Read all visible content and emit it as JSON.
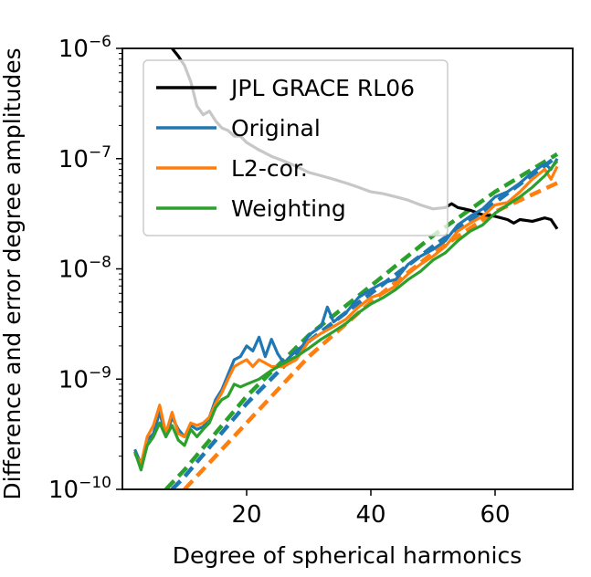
{
  "chart_data": {
    "type": "line",
    "xlabel": "Degree of spherical harmonics",
    "ylabel": "Difference and error degree amplitudes",
    "xlim": [
      0,
      72.5
    ],
    "ylim": [
      1e-10,
      1e-06
    ],
    "yscale": "log",
    "grid": false,
    "legend_position": "top-left",
    "x_ticks": [
      {
        "value": 20,
        "label": "20"
      },
      {
        "value": 40,
        "label": "40"
      },
      {
        "value": 60,
        "label": "60"
      }
    ],
    "y_ticks": [
      {
        "value": 1e-10,
        "base": "10",
        "exp": "−10"
      },
      {
        "value": 1e-09,
        "base": "10",
        "exp": "−9"
      },
      {
        "value": 1e-08,
        "base": "10",
        "exp": "−8"
      },
      {
        "value": 1e-07,
        "base": "10",
        "exp": "−7"
      },
      {
        "value": 1e-06,
        "base": "10",
        "exp": "−6"
      }
    ],
    "series": [
      {
        "name": "JPL GRACE RL06",
        "color": "#000000",
        "style": "solid",
        "points": [
          [
            8,
            1e-06
          ],
          [
            9,
            8.5e-07
          ],
          [
            10,
            7e-07
          ],
          [
            11,
            5e-07
          ],
          [
            12,
            3e-07
          ],
          [
            13,
            2.5e-07
          ],
          [
            14,
            2.7e-07
          ],
          [
            15,
            2.2e-07
          ],
          [
            16,
            1.9e-07
          ],
          [
            17,
            1.8e-07
          ],
          [
            18,
            1.6e-07
          ],
          [
            19,
            1.6e-07
          ],
          [
            20,
            1.4e-07
          ],
          [
            22,
            1.2e-07
          ],
          [
            24,
            1.05e-07
          ],
          [
            26,
            9.5e-08
          ],
          [
            28,
            8.5e-08
          ],
          [
            30,
            7.5e-08
          ],
          [
            32,
            7e-08
          ],
          [
            34,
            6.5e-08
          ],
          [
            36,
            6e-08
          ],
          [
            38,
            5.5e-08
          ],
          [
            40,
            5e-08
          ],
          [
            42,
            4.8e-08
          ],
          [
            44,
            4.5e-08
          ],
          [
            46,
            4.2e-08
          ],
          [
            48,
            3.8e-08
          ],
          [
            50,
            3.5e-08
          ],
          [
            52,
            3.6e-08
          ],
          [
            53,
            3.9e-08
          ],
          [
            54,
            3.6e-08
          ],
          [
            56,
            3.4e-08
          ],
          [
            58,
            3.1e-08
          ],
          [
            60,
            3e-08
          ],
          [
            62,
            2.8e-08
          ],
          [
            63,
            2.6e-08
          ],
          [
            64,
            2.8e-08
          ],
          [
            66,
            2.7e-08
          ],
          [
            68,
            2.9e-08
          ],
          [
            69,
            2.8e-08
          ],
          [
            70,
            2.3e-08
          ]
        ]
      },
      {
        "name": "Original",
        "color": "#1f77b4",
        "style": "solid",
        "points": [
          [
            2,
            2.3e-10
          ],
          [
            3,
            1.7e-10
          ],
          [
            4,
            2.8e-10
          ],
          [
            5,
            3.2e-10
          ],
          [
            6,
            5e-10
          ],
          [
            7,
            3e-10
          ],
          [
            8,
            4.5e-10
          ],
          [
            9,
            3.5e-10
          ],
          [
            10,
            3e-10
          ],
          [
            11,
            3.8e-10
          ],
          [
            12,
            3.5e-10
          ],
          [
            13,
            3.7e-10
          ],
          [
            14,
            4.5e-10
          ],
          [
            15,
            6.5e-10
          ],
          [
            16,
            8e-10
          ],
          [
            17,
            1.1e-09
          ],
          [
            18,
            1.5e-09
          ],
          [
            19,
            1.6e-09
          ],
          [
            20,
            2e-09
          ],
          [
            21,
            1.8e-09
          ],
          [
            22,
            2.4e-09
          ],
          [
            23,
            1.6e-09
          ],
          [
            24,
            2.3e-09
          ],
          [
            25,
            1.7e-09
          ],
          [
            26,
            1.4e-09
          ],
          [
            27,
            1.6e-09
          ],
          [
            28,
            1.8e-09
          ],
          [
            29,
            2e-09
          ],
          [
            30,
            2.5e-09
          ],
          [
            32,
            3e-09
          ],
          [
            33,
            4.5e-09
          ],
          [
            34,
            3.3e-09
          ],
          [
            36,
            4e-09
          ],
          [
            38,
            5.5e-09
          ],
          [
            40,
            6.5e-09
          ],
          [
            42,
            7.5e-09
          ],
          [
            44,
            8e-09
          ],
          [
            46,
            1.1e-08
          ],
          [
            48,
            1.3e-08
          ],
          [
            50,
            1.5e-08
          ],
          [
            52,
            1.8e-08
          ],
          [
            54,
            2.5e-08
          ],
          [
            56,
            3e-08
          ],
          [
            58,
            3.5e-08
          ],
          [
            60,
            4.5e-08
          ],
          [
            62,
            5e-08
          ],
          [
            64,
            6e-08
          ],
          [
            66,
            7.5e-08
          ],
          [
            68,
            9e-08
          ],
          [
            69,
            8e-08
          ],
          [
            70,
            1e-07
          ]
        ]
      },
      {
        "name": "L2-cor.",
        "color": "#ff7f0e",
        "style": "solid",
        "points": [
          [
            2,
            2.1e-10
          ],
          [
            3,
            1.7e-10
          ],
          [
            4,
            3e-10
          ],
          [
            5,
            3.8e-10
          ],
          [
            6,
            5.8e-10
          ],
          [
            7,
            3.2e-10
          ],
          [
            8,
            5e-10
          ],
          [
            9,
            3.2e-10
          ],
          [
            10,
            3e-10
          ],
          [
            11,
            4e-10
          ],
          [
            12,
            3.8e-10
          ],
          [
            13,
            4e-10
          ],
          [
            14,
            4.5e-10
          ],
          [
            15,
            6e-10
          ],
          [
            16,
            7.5e-10
          ],
          [
            17,
            1e-09
          ],
          [
            18,
            1.3e-09
          ],
          [
            19,
            1.4e-09
          ],
          [
            20,
            1.5e-09
          ],
          [
            21,
            1.3e-09
          ],
          [
            22,
            1.5e-09
          ],
          [
            23,
            1.4e-09
          ],
          [
            24,
            1.3e-09
          ],
          [
            26,
            1.3e-09
          ],
          [
            27,
            1.4e-09
          ],
          [
            28,
            1.5e-09
          ],
          [
            30,
            2.2e-09
          ],
          [
            32,
            2.6e-09
          ],
          [
            34,
            3e-09
          ],
          [
            36,
            3.5e-09
          ],
          [
            38,
            4.5e-09
          ],
          [
            40,
            5.5e-09
          ],
          [
            42,
            6e-09
          ],
          [
            44,
            7e-09
          ],
          [
            46,
            9e-09
          ],
          [
            48,
            1.1e-08
          ],
          [
            50,
            1.3e-08
          ],
          [
            52,
            1.6e-08
          ],
          [
            54,
            2.2e-08
          ],
          [
            56,
            2.6e-08
          ],
          [
            58,
            3e-08
          ],
          [
            60,
            3.8e-08
          ],
          [
            62,
            4e-08
          ],
          [
            64,
            5e-08
          ],
          [
            66,
            6.5e-08
          ],
          [
            68,
            8e-08
          ],
          [
            69,
            6.5e-08
          ],
          [
            70,
            8.5e-08
          ]
        ]
      },
      {
        "name": "Weighting",
        "color": "#2ca02c",
        "style": "solid",
        "points": [
          [
            2,
            2.2e-10
          ],
          [
            3,
            1.5e-10
          ],
          [
            4,
            2.5e-10
          ],
          [
            5,
            3e-10
          ],
          [
            6,
            4e-10
          ],
          [
            7,
            3e-10
          ],
          [
            8,
            3.8e-10
          ],
          [
            9,
            2.8e-10
          ],
          [
            10,
            2.5e-10
          ],
          [
            11,
            3.5e-10
          ],
          [
            12,
            3e-10
          ],
          [
            13,
            3.5e-10
          ],
          [
            14,
            4e-10
          ],
          [
            15,
            5.5e-10
          ],
          [
            16,
            6.5e-10
          ],
          [
            17,
            7e-10
          ],
          [
            18,
            9e-10
          ],
          [
            19,
            8.5e-10
          ],
          [
            20,
            9e-10
          ],
          [
            22,
            1e-09
          ],
          [
            24,
            1.2e-09
          ],
          [
            26,
            1.4e-09
          ],
          [
            28,
            1.6e-09
          ],
          [
            30,
            1.9e-09
          ],
          [
            32,
            2.3e-09
          ],
          [
            34,
            2.7e-09
          ],
          [
            36,
            3.2e-09
          ],
          [
            38,
            4e-09
          ],
          [
            40,
            4.8e-09
          ],
          [
            42,
            5.5e-09
          ],
          [
            44,
            6.5e-09
          ],
          [
            46,
            8e-09
          ],
          [
            48,
            9.5e-09
          ],
          [
            50,
            1.2e-08
          ],
          [
            52,
            1.4e-08
          ],
          [
            54,
            1.8e-08
          ],
          [
            56,
            2.2e-08
          ],
          [
            58,
            2.5e-08
          ],
          [
            60,
            3.2e-08
          ],
          [
            62,
            3.8e-08
          ],
          [
            64,
            4.5e-08
          ],
          [
            66,
            5.5e-08
          ],
          [
            68,
            7e-08
          ],
          [
            70,
            9.5e-08
          ]
        ]
      },
      {
        "color": "#1f77b4",
        "style": "dashed",
        "points": [
          [
            8,
            1e-10
          ],
          [
            10,
            1.3e-10
          ],
          [
            20,
            6e-10
          ],
          [
            30,
            2.2e-09
          ],
          [
            40,
            6e-09
          ],
          [
            50,
            1.6e-08
          ],
          [
            60,
            4e-08
          ],
          [
            70,
            1.05e-07
          ]
        ]
      },
      {
        "color": "#ff7f0e",
        "style": "dashed",
        "points": [
          [
            10,
            1e-10
          ],
          [
            20,
            4e-10
          ],
          [
            30,
            1.6e-09
          ],
          [
            40,
            5e-09
          ],
          [
            50,
            1.4e-08
          ],
          [
            60,
            3.3e-08
          ],
          [
            70,
            6e-08
          ]
        ]
      },
      {
        "color": "#2ca02c",
        "style": "dashed",
        "points": [
          [
            7,
            1e-10
          ],
          [
            10,
            1.5e-10
          ],
          [
            20,
            7e-10
          ],
          [
            30,
            2.5e-09
          ],
          [
            40,
            7e-09
          ],
          [
            50,
            2e-08
          ],
          [
            60,
            5e-08
          ],
          [
            70,
            1.1e-07
          ]
        ]
      }
    ]
  }
}
